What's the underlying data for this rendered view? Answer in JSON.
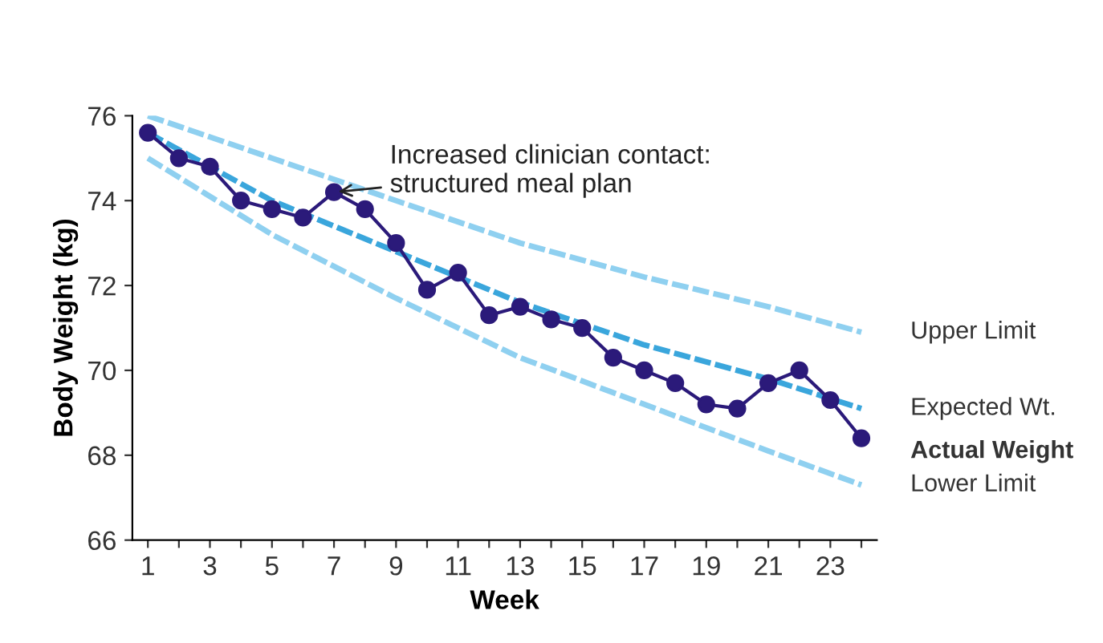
{
  "chart_data": {
    "type": "line",
    "xlabel": "Week",
    "ylabel": "Body Weight (kg)",
    "xlim": [
      0.5,
      24.5
    ],
    "ylim": [
      66,
      76
    ],
    "xticks": [
      1,
      {
        "value": 2,
        "label": null
      },
      3,
      {
        "value": 4,
        "label": null
      },
      5,
      {
        "value": 6,
        "label": null
      },
      7,
      {
        "value": 8,
        "label": null
      },
      9,
      {
        "value": 10,
        "label": null
      },
      11,
      {
        "value": 12,
        "label": null
      },
      13,
      {
        "value": 14,
        "label": null
      },
      15,
      {
        "value": 16,
        "label": null
      },
      17,
      {
        "value": 18,
        "label": null
      },
      19,
      {
        "value": 20,
        "label": null
      },
      21,
      {
        "value": 22,
        "label": null
      },
      23,
      {
        "value": 24,
        "label": null
      }
    ],
    "yticks": [
      66,
      68,
      70,
      72,
      74,
      76
    ],
    "grid": false,
    "legend": false,
    "series": [
      {
        "name": "Upper Limit",
        "color": "#8fd0f0",
        "line_style": "dashed",
        "marker": "none",
        "x": [
          1,
          5,
          9,
          13,
          17,
          21,
          24
        ],
        "values": [
          76.0,
          75.0,
          74.0,
          73.0,
          72.2,
          71.5,
          70.9
        ]
      },
      {
        "name": "Expected Wt.",
        "color": "#3aa6dc",
        "line_style": "dashed",
        "marker": "none",
        "x": [
          1,
          5,
          9,
          13,
          17,
          21,
          24
        ],
        "values": [
          75.6,
          74.0,
          72.8,
          71.6,
          70.6,
          69.8,
          69.1
        ]
      },
      {
        "name": "Lower Limit",
        "color": "#8fd0f0",
        "line_style": "dashed",
        "marker": "none",
        "x": [
          1,
          5,
          9,
          13,
          17,
          21,
          24
        ],
        "values": [
          75.0,
          73.2,
          71.7,
          70.3,
          69.2,
          68.1,
          67.3
        ]
      },
      {
        "name": "Actual Weight",
        "color": "#2b1a7a",
        "line_style": "solid",
        "marker": "circle",
        "x": [
          1,
          2,
          3,
          4,
          5,
          6,
          7,
          8,
          9,
          10,
          11,
          12,
          13,
          14,
          15,
          16,
          17,
          18,
          19,
          20,
          21,
          22,
          23,
          24
        ],
        "values": [
          75.6,
          75.0,
          74.8,
          74.0,
          73.8,
          73.6,
          74.2,
          73.8,
          73.0,
          71.9,
          72.3,
          71.3,
          71.5,
          71.2,
          71.0,
          70.3,
          70.0,
          69.7,
          69.2,
          69.1,
          69.7,
          70.0,
          69.3,
          68.4
        ]
      }
    ],
    "annotations": [
      {
        "text": "Increased clinician contact:\nstructured meal plan",
        "x": 7,
        "y": 74.2
      }
    ]
  }
}
